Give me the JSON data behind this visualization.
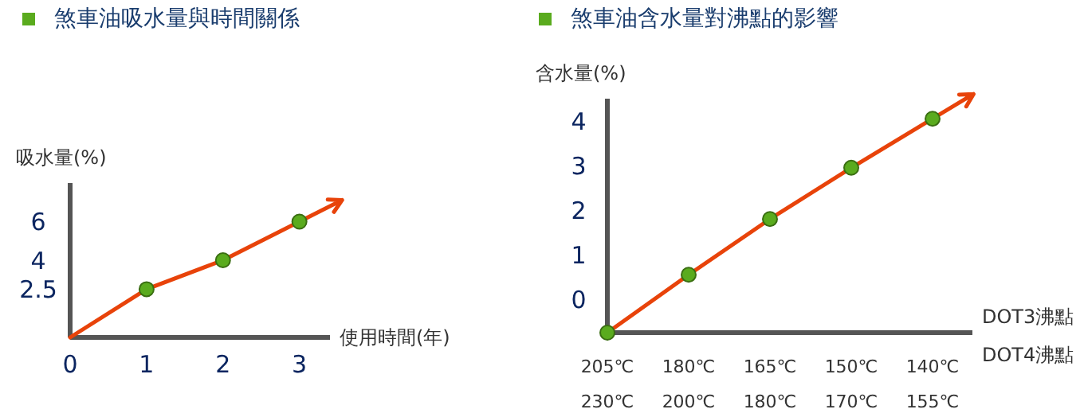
{
  "chart_data": [
    {
      "type": "line",
      "title": "煞車油吸水量與時間關係",
      "ylabel": "吸水量(%)",
      "xlabel": "使用時間(年)",
      "x": [
        0,
        1,
        2,
        3
      ],
      "xlim": [
        0,
        3.4
      ],
      "xticks": [
        0,
        1,
        2,
        3
      ],
      "ylim": [
        0,
        8
      ],
      "yticks": [
        2.5,
        4,
        6
      ],
      "grid": false,
      "series": [
        {
          "color": "#e8430a",
          "values": [
            0,
            2.5,
            4,
            6
          ],
          "marker": "none"
        },
        {
          "type": "scatter",
          "color": "#5aab1e",
          "x": [
            1,
            2,
            3
          ],
          "values": [
            2.5,
            4,
            6
          ],
          "marker": "circle"
        }
      ]
    },
    {
      "type": "line",
      "title": "煞車油含水量對沸點的影響",
      "ylabel": "含水量(%)",
      "xlabel": "DOT3沸點",
      "annotations": [
        "DOT4沸點"
      ],
      "categories": [
        "205℃\n230℃",
        "180℃\n200℃",
        "165℃\n180℃",
        "150℃\n170℃",
        "140℃\n155℃"
      ],
      "ylim": [
        -0.75,
        4.5
      ],
      "yticks": [
        0,
        1,
        2,
        3,
        4
      ],
      "grid": false,
      "series": [
        {
          "color": "#e8430a",
          "values": [
            -0.75,
            0.55,
            1.8,
            2.95,
            4.05
          ],
          "marker": "none"
        },
        {
          "type": "scatter",
          "color": "#5aab1e",
          "values": [
            -0.75,
            0.55,
            1.8,
            2.95,
            4.05
          ],
          "marker": "circle"
        }
      ]
    }
  ]
}
